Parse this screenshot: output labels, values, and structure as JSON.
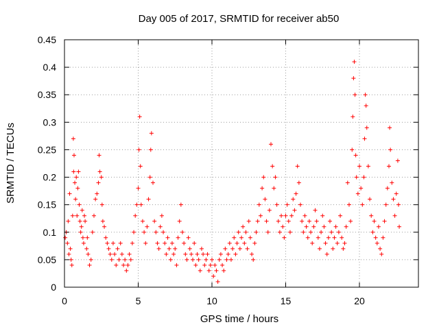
{
  "chart_data": {
    "type": "scatter",
    "title": "Day 005 of 2017, SRMTID for receiver ab50",
    "xlabel": "GPS time / hours",
    "ylabel": "SRMTID / TECUs",
    "xlim": [
      0,
      24
    ],
    "ylim": [
      0,
      0.45
    ],
    "xticks": [
      0,
      5,
      10,
      15,
      20
    ],
    "xtick_labels": [
      "0",
      "5",
      "10",
      "15",
      "20"
    ],
    "yticks": [
      0,
      0.05,
      0.1,
      0.15,
      0.2,
      0.25,
      0.3,
      0.35,
      0.4,
      0.45
    ],
    "ytick_labels": [
      "0",
      "0.05",
      "0.1",
      "0.15",
      "0.2",
      "0.25",
      "0.3",
      "0.35",
      "0.4",
      "0.45"
    ],
    "grid": true,
    "marker": "+",
    "color": "#ff0000",
    "series": [
      {
        "name": "SRMTID",
        "points": [
          [
            0.05,
            0.09
          ],
          [
            0.12,
            0.1
          ],
          [
            0.2,
            0.08
          ],
          [
            0.25,
            0.12
          ],
          [
            0.3,
            0.06
          ],
          [
            0.35,
            0.17
          ],
          [
            0.4,
            0.07
          ],
          [
            0.45,
            0.05
          ],
          [
            0.5,
            0.04
          ],
          [
            0.55,
            0.13
          ],
          [
            0.6,
            0.27
          ],
          [
            0.62,
            0.21
          ],
          [
            0.65,
            0.24
          ],
          [
            0.7,
            0.19
          ],
          [
            0.75,
            0.16
          ],
          [
            0.8,
            0.2
          ],
          [
            0.85,
            0.13
          ],
          [
            0.9,
            0.18
          ],
          [
            0.95,
            0.21
          ],
          [
            1.0,
            0.15
          ],
          [
            1.05,
            0.12
          ],
          [
            1.1,
            0.1
          ],
          [
            1.15,
            0.11
          ],
          [
            1.2,
            0.14
          ],
          [
            1.25,
            0.09
          ],
          [
            1.3,
            0.08
          ],
          [
            1.35,
            0.13
          ],
          [
            1.4,
            0.12
          ],
          [
            1.5,
            0.07
          ],
          [
            1.55,
            0.09
          ],
          [
            1.6,
            0.06
          ],
          [
            1.7,
            0.04
          ],
          [
            1.8,
            0.05
          ],
          [
            1.9,
            0.1
          ],
          [
            2.0,
            0.13
          ],
          [
            2.1,
            0.16
          ],
          [
            2.2,
            0.17
          ],
          [
            2.3,
            0.19
          ],
          [
            2.35,
            0.24
          ],
          [
            2.4,
            0.21
          ],
          [
            2.5,
            0.2
          ],
          [
            2.55,
            0.15
          ],
          [
            2.6,
            0.12
          ],
          [
            2.7,
            0.11
          ],
          [
            2.8,
            0.09
          ],
          [
            2.9,
            0.08
          ],
          [
            3.0,
            0.07
          ],
          [
            3.1,
            0.06
          ],
          [
            3.2,
            0.05
          ],
          [
            3.3,
            0.08
          ],
          [
            3.4,
            0.06
          ],
          [
            3.5,
            0.04
          ],
          [
            3.6,
            0.07
          ],
          [
            3.7,
            0.05
          ],
          [
            3.8,
            0.08
          ],
          [
            3.9,
            0.06
          ],
          [
            4.0,
            0.04
          ],
          [
            4.1,
            0.05
          ],
          [
            4.2,
            0.03
          ],
          [
            4.3,
            0.04
          ],
          [
            4.4,
            0.06
          ],
          [
            4.5,
            0.05
          ],
          [
            4.6,
            0.08
          ],
          [
            4.7,
            0.1
          ],
          [
            4.8,
            0.13
          ],
          [
            4.9,
            0.15
          ],
          [
            5.0,
            0.18
          ],
          [
            5.05,
            0.25
          ],
          [
            5.1,
            0.31
          ],
          [
            5.15,
            0.22
          ],
          [
            5.2,
            0.15
          ],
          [
            5.3,
            0.12
          ],
          [
            5.4,
            0.1
          ],
          [
            5.5,
            0.08
          ],
          [
            5.6,
            0.11
          ],
          [
            5.7,
            0.16
          ],
          [
            5.8,
            0.2
          ],
          [
            5.85,
            0.25
          ],
          [
            5.9,
            0.28
          ],
          [
            6.0,
            0.19
          ],
          [
            6.1,
            0.12
          ],
          [
            6.2,
            0.1
          ],
          [
            6.3,
            0.08
          ],
          [
            6.4,
            0.07
          ],
          [
            6.5,
            0.11
          ],
          [
            6.6,
            0.13
          ],
          [
            6.7,
            0.1
          ],
          [
            6.8,
            0.08
          ],
          [
            6.9,
            0.06
          ],
          [
            7.0,
            0.09
          ],
          [
            7.1,
            0.07
          ],
          [
            7.2,
            0.05
          ],
          [
            7.3,
            0.08
          ],
          [
            7.4,
            0.06
          ],
          [
            7.5,
            0.07
          ],
          [
            7.6,
            0.04
          ],
          [
            7.7,
            0.09
          ],
          [
            7.8,
            0.12
          ],
          [
            7.9,
            0.15
          ],
          [
            8.0,
            0.1
          ],
          [
            8.1,
            0.08
          ],
          [
            8.2,
            0.06
          ],
          [
            8.3,
            0.05
          ],
          [
            8.4,
            0.09
          ],
          [
            8.5,
            0.07
          ],
          [
            8.6,
            0.06
          ],
          [
            8.7,
            0.05
          ],
          [
            8.8,
            0.08
          ],
          [
            8.9,
            0.04
          ],
          [
            9.0,
            0.06
          ],
          [
            9.1,
            0.05
          ],
          [
            9.2,
            0.03
          ],
          [
            9.3,
            0.07
          ],
          [
            9.4,
            0.06
          ],
          [
            9.5,
            0.04
          ],
          [
            9.6,
            0.05
          ],
          [
            9.7,
            0.06
          ],
          [
            9.8,
            0.03
          ],
          [
            9.9,
            0.04
          ],
          [
            10.0,
            0.05
          ],
          [
            10.1,
            0.02
          ],
          [
            10.2,
            0.04
          ],
          [
            10.3,
            0.03
          ],
          [
            10.4,
            0.01
          ],
          [
            10.5,
            0.05
          ],
          [
            10.6,
            0.06
          ],
          [
            10.7,
            0.04
          ],
          [
            10.8,
            0.03
          ],
          [
            10.9,
            0.07
          ],
          [
            11.0,
            0.05
          ],
          [
            11.1,
            0.06
          ],
          [
            11.2,
            0.08
          ],
          [
            11.3,
            0.05
          ],
          [
            11.4,
            0.07
          ],
          [
            11.5,
            0.09
          ],
          [
            11.6,
            0.06
          ],
          [
            11.7,
            0.08
          ],
          [
            11.8,
            0.1
          ],
          [
            11.9,
            0.07
          ],
          [
            12.0,
            0.09
          ],
          [
            12.1,
            0.11
          ],
          [
            12.2,
            0.08
          ],
          [
            12.3,
            0.1
          ],
          [
            12.4,
            0.07
          ],
          [
            12.5,
            0.12
          ],
          [
            12.6,
            0.09
          ],
          [
            12.7,
            0.06
          ],
          [
            12.8,
            0.05
          ],
          [
            12.9,
            0.08
          ],
          [
            13.0,
            0.1
          ],
          [
            13.1,
            0.12
          ],
          [
            13.2,
            0.15
          ],
          [
            13.3,
            0.13
          ],
          [
            13.4,
            0.18
          ],
          [
            13.5,
            0.2
          ],
          [
            13.6,
            0.16
          ],
          [
            13.7,
            0.12
          ],
          [
            13.8,
            0.1
          ],
          [
            13.9,
            0.14
          ],
          [
            14.0,
            0.26
          ],
          [
            14.1,
            0.22
          ],
          [
            14.2,
            0.18
          ],
          [
            14.3,
            0.2
          ],
          [
            14.4,
            0.15
          ],
          [
            14.5,
            0.12
          ],
          [
            14.6,
            0.1
          ],
          [
            14.7,
            0.13
          ],
          [
            14.8,
            0.11
          ],
          [
            14.9,
            0.09
          ],
          [
            15.0,
            0.13
          ],
          [
            15.1,
            0.15
          ],
          [
            15.2,
            0.12
          ],
          [
            15.3,
            0.1
          ],
          [
            15.4,
            0.13
          ],
          [
            15.5,
            0.16
          ],
          [
            15.6,
            0.14
          ],
          [
            15.7,
            0.17
          ],
          [
            15.8,
            0.22
          ],
          [
            15.9,
            0.19
          ],
          [
            16.0,
            0.15
          ],
          [
            16.1,
            0.12
          ],
          [
            16.2,
            0.1
          ],
          [
            16.3,
            0.13
          ],
          [
            16.4,
            0.11
          ],
          [
            16.5,
            0.09
          ],
          [
            16.6,
            0.12
          ],
          [
            16.7,
            0.1
          ],
          [
            16.8,
            0.08
          ],
          [
            16.9,
            0.11
          ],
          [
            17.0,
            0.14
          ],
          [
            17.1,
            0.12
          ],
          [
            17.2,
            0.09
          ],
          [
            17.3,
            0.07
          ],
          [
            17.4,
            0.1
          ],
          [
            17.5,
            0.13
          ],
          [
            17.6,
            0.11
          ],
          [
            17.7,
            0.08
          ],
          [
            17.8,
            0.06
          ],
          [
            17.9,
            0.09
          ],
          [
            18.0,
            0.12
          ],
          [
            18.1,
            0.1
          ],
          [
            18.2,
            0.07
          ],
          [
            18.3,
            0.09
          ],
          [
            18.4,
            0.11
          ],
          [
            18.5,
            0.08
          ],
          [
            18.6,
            0.1
          ],
          [
            18.7,
            0.13
          ],
          [
            18.8,
            0.09
          ],
          [
            18.9,
            0.07
          ],
          [
            19.0,
            0.08
          ],
          [
            19.1,
            0.11
          ],
          [
            19.2,
            0.19
          ],
          [
            19.3,
            0.15
          ],
          [
            19.4,
            0.12
          ],
          [
            19.5,
            0.25
          ],
          [
            19.55,
            0.31
          ],
          [
            19.6,
            0.38
          ],
          [
            19.65,
            0.41
          ],
          [
            19.7,
            0.35
          ],
          [
            19.75,
            0.24
          ],
          [
            19.8,
            0.2
          ],
          [
            19.9,
            0.17
          ],
          [
            20.0,
            0.22
          ],
          [
            20.1,
            0.18
          ],
          [
            20.2,
            0.15
          ],
          [
            20.3,
            0.2
          ],
          [
            20.35,
            0.27
          ],
          [
            20.4,
            0.35
          ],
          [
            20.45,
            0.33
          ],
          [
            20.5,
            0.29
          ],
          [
            20.6,
            0.22
          ],
          [
            20.7,
            0.16
          ],
          [
            20.8,
            0.13
          ],
          [
            20.9,
            0.1
          ],
          [
            21.0,
            0.12
          ],
          [
            21.1,
            0.09
          ],
          [
            21.2,
            0.08
          ],
          [
            21.3,
            0.11
          ],
          [
            21.4,
            0.07
          ],
          [
            21.5,
            0.06
          ],
          [
            21.6,
            0.09
          ],
          [
            21.7,
            0.12
          ],
          [
            21.8,
            0.15
          ],
          [
            21.9,
            0.18
          ],
          [
            22.0,
            0.22
          ],
          [
            22.05,
            0.29
          ],
          [
            22.1,
            0.25
          ],
          [
            22.2,
            0.19
          ],
          [
            22.3,
            0.16
          ],
          [
            22.4,
            0.13
          ],
          [
            22.5,
            0.17
          ],
          [
            22.6,
            0.23
          ],
          [
            22.65,
            0.15
          ],
          [
            22.7,
            0.11
          ]
        ]
      }
    ]
  }
}
